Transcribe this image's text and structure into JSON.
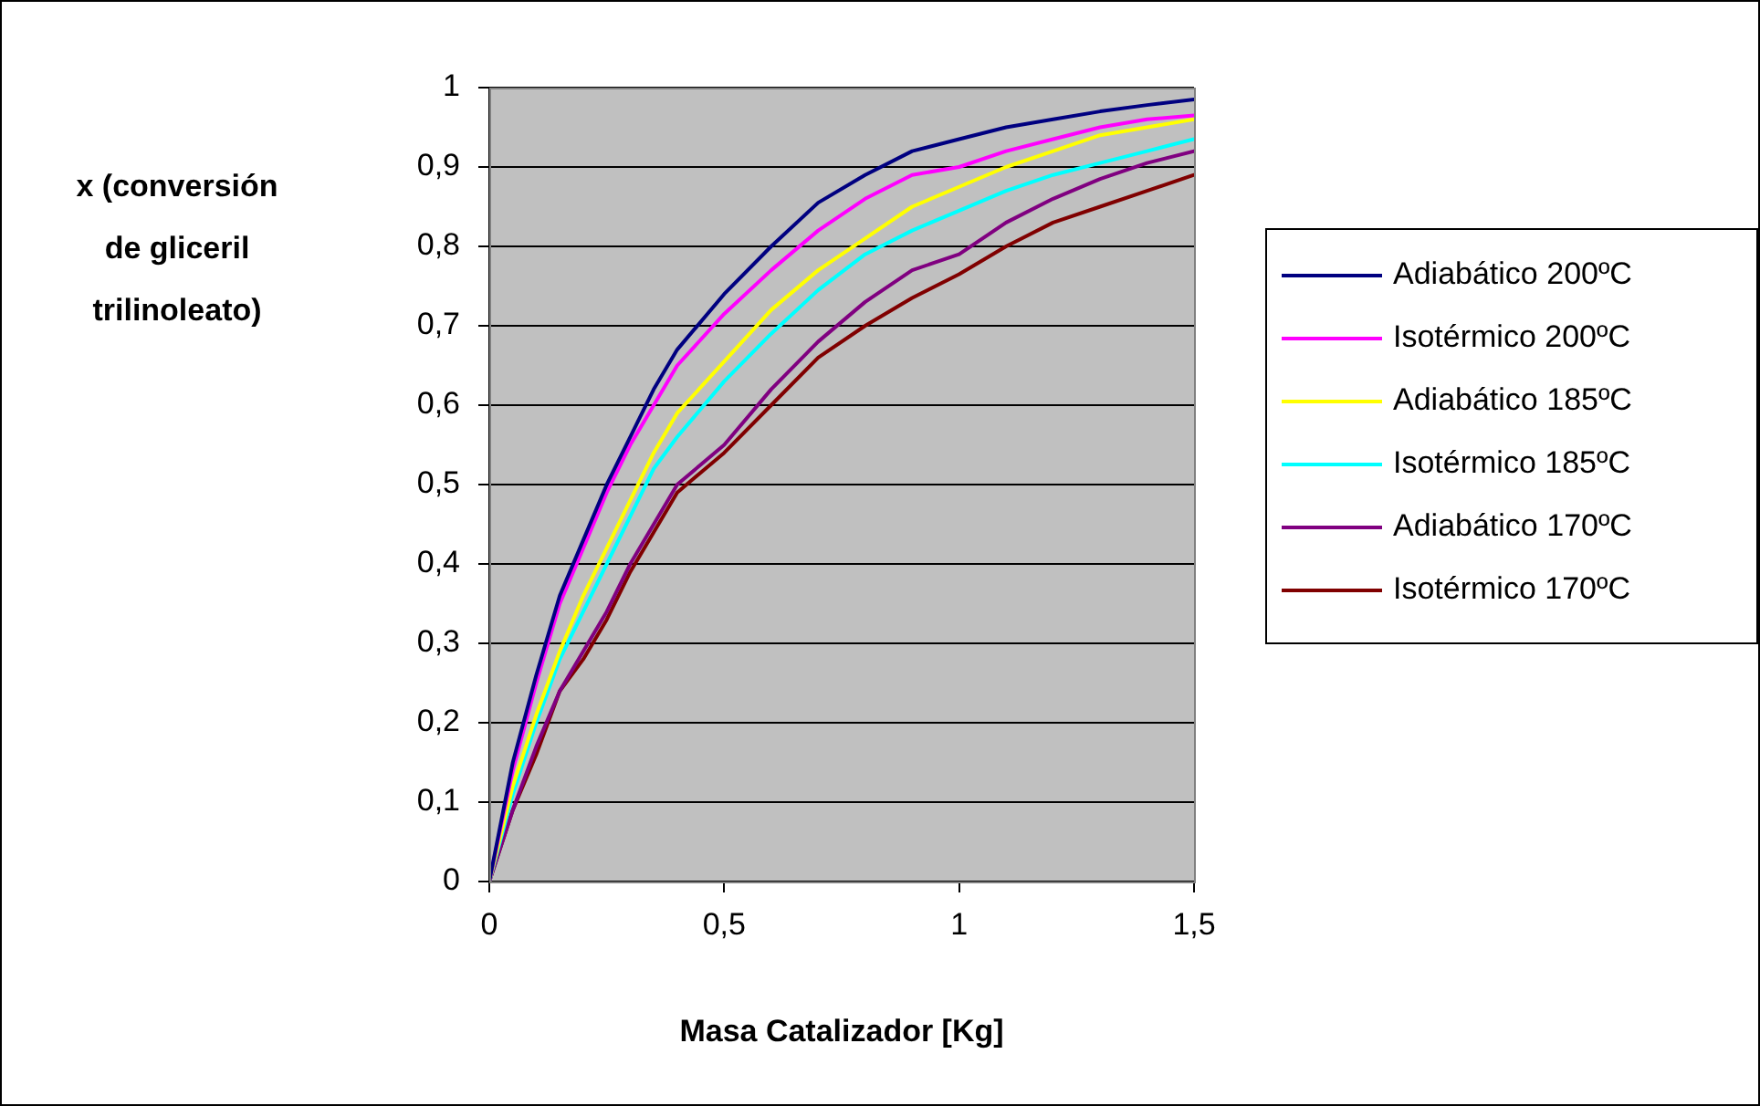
{
  "chart_data": {
    "type": "line",
    "xlabel": "Masa Catalizador [Kg]",
    "ylabel": "x (conversión de gliceril trilinoleato)",
    "x": [
      0,
      0.05,
      0.1,
      0.15,
      0.2,
      0.25,
      0.3,
      0.35,
      0.4,
      0.5,
      0.6,
      0.7,
      0.8,
      0.9,
      1.0,
      1.1,
      1.2,
      1.3,
      1.4,
      1.5
    ],
    "xlim": [
      0,
      1.5
    ],
    "xticks": [
      0,
      {
        "value": 0.5,
        "label": "0,5"
      },
      1,
      {
        "value": 1.5,
        "label": "1,5"
      }
    ],
    "ylim": [
      0,
      1
    ],
    "yticks": [
      0,
      {
        "value": 0.1,
        "label": "0,1"
      },
      {
        "value": 0.2,
        "label": "0,2"
      },
      {
        "value": 0.3,
        "label": "0,3"
      },
      {
        "value": 0.4,
        "label": "0,4"
      },
      {
        "value": 0.5,
        "label": "0,5"
      },
      {
        "value": 0.6,
        "label": "0,6"
      },
      {
        "value": 0.7,
        "label": "0,7"
      },
      {
        "value": 0.8,
        "label": "0,8"
      },
      {
        "value": 0.9,
        "label": "0,9"
      },
      1
    ],
    "grid": "y",
    "legend": "right",
    "marker": "none",
    "line_style": "solid",
    "series": [
      {
        "name": "Adiabático 200ºC",
        "color": "#000080",
        "values": [
          0,
          0.15,
          0.26,
          0.36,
          0.43,
          0.5,
          0.56,
          0.62,
          0.67,
          0.74,
          0.8,
          0.855,
          0.89,
          0.92,
          0.935,
          0.95,
          0.96,
          0.97,
          0.978,
          0.985
        ]
      },
      {
        "name": "Isotérmico 200ºC",
        "color": "#ff00ff",
        "values": [
          0,
          0.14,
          0.25,
          0.35,
          0.42,
          0.49,
          0.55,
          0.6,
          0.65,
          0.715,
          0.77,
          0.82,
          0.86,
          0.89,
          0.9,
          0.92,
          0.935,
          0.95,
          0.96,
          0.965
        ]
      },
      {
        "name": "Adiabático 185ºC",
        "color": "#ffff00",
        "values": [
          0,
          0.12,
          0.21,
          0.29,
          0.36,
          0.42,
          0.48,
          0.54,
          0.59,
          0.655,
          0.72,
          0.77,
          0.81,
          0.85,
          0.875,
          0.9,
          0.92,
          0.94,
          0.95,
          0.96
        ]
      },
      {
        "name": "Isotérmico 185ºC",
        "color": "#00ffff",
        "values": [
          0,
          0.11,
          0.2,
          0.28,
          0.34,
          0.4,
          0.46,
          0.52,
          0.56,
          0.63,
          0.69,
          0.745,
          0.79,
          0.82,
          0.845,
          0.87,
          0.89,
          0.905,
          0.92,
          0.935
        ]
      },
      {
        "name": "Adiabático 170ºC",
        "color": "#800080",
        "values": [
          0,
          0.09,
          0.17,
          0.24,
          0.29,
          0.34,
          0.4,
          0.45,
          0.5,
          0.55,
          0.62,
          0.68,
          0.73,
          0.77,
          0.79,
          0.83,
          0.86,
          0.885,
          0.905,
          0.92
        ]
      },
      {
        "name": "Isotérmico 170ºC",
        "color": "#800000",
        "values": [
          0,
          0.09,
          0.16,
          0.24,
          0.28,
          0.33,
          0.39,
          0.44,
          0.49,
          0.54,
          0.6,
          0.66,
          0.7,
          0.735,
          0.765,
          0.8,
          0.83,
          0.85,
          0.87,
          0.89
        ]
      }
    ]
  }
}
